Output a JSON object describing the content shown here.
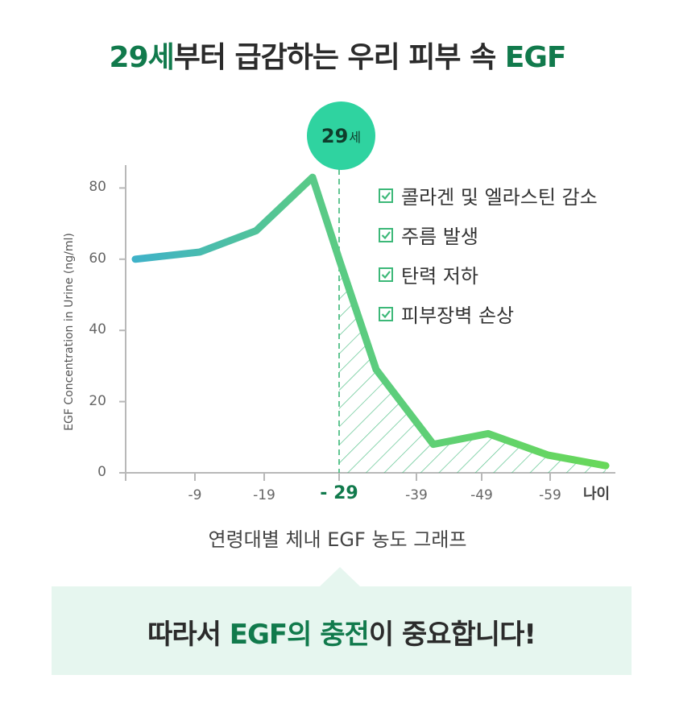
{
  "title": {
    "accent1": "29세",
    "mid": "부터 급감하는 우리 피부 속 ",
    "accent2": "EGF"
  },
  "badge": {
    "number": "29",
    "unit": "세"
  },
  "legend": {
    "items": [
      "콜라겐 및 엘라스틴 감소",
      "주름 발생",
      "탄력 저하",
      "피부장벽 손상"
    ]
  },
  "caption": "연령대별 체내 EGF 농도 그래프",
  "callout": {
    "pre": "따라서 ",
    "accent": "EGF의 충전",
    "post": "이 중요합니다!"
  },
  "colors": {
    "line_start": "#3fb2c8",
    "line_end": "#68d85a",
    "accent": "#117a4c",
    "badge": "#2fd3a0",
    "hatch": "#3cb878"
  },
  "chart_data": {
    "type": "line",
    "ylabel": "EGF Concentration in Urine (ng/ml)",
    "xlabel": "나이",
    "ylim": [
      0,
      85
    ],
    "yticks": [
      "0",
      "20",
      "40",
      "60",
      "80"
    ],
    "xticks": [
      "-9",
      "-19",
      "- 29",
      "-39",
      "-49",
      "-59"
    ],
    "highlight_tick": "- 29",
    "series": [
      {
        "values": [
          60,
          62,
          68,
          83,
          60,
          29,
          8,
          11,
          5,
          2
        ]
      }
    ]
  }
}
